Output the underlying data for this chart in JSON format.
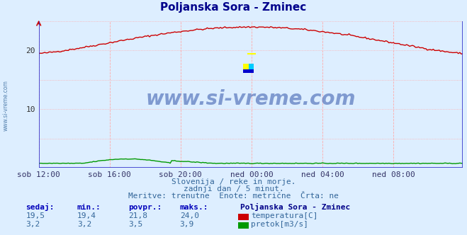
{
  "title": "Poljanska Sora - Zminec",
  "title_color": "#00008B",
  "bg_color": "#ddeeff",
  "plot_bg_color": "#ddeeff",
  "grid_color_v": "#ffaaaa",
  "grid_color_h": "#ffaaaa",
  "x_tick_labels": [
    "sob 12:00",
    "sob 16:00",
    "sob 20:00",
    "ned 00:00",
    "ned 04:00",
    "ned 08:00"
  ],
  "x_tick_positions": [
    0,
    48,
    96,
    144,
    192,
    240
  ],
  "total_points": 288,
  "ylim": [
    0,
    25
  ],
  "yticks": [
    10,
    20
  ],
  "temp_color": "#cc0000",
  "flow_color": "#009900",
  "border_color": "#3333cc",
  "subtitle_lines": [
    "Slovenija / reke in morje.",
    "zadnji dan / 5 minut.",
    "Meritve: trenutne  Enote: metrične  Črta: ne"
  ],
  "subtitle_color": "#336699",
  "table_header_color": "#0000bb",
  "table_value_color": "#336699",
  "table_bold_color": "#000088",
  "stat_labels": [
    "sedaj:",
    "min.:",
    "povpr.:",
    "maks.:"
  ],
  "temp_stats": [
    19.5,
    19.4,
    21.8,
    24.0
  ],
  "flow_stats": [
    3.2,
    3.2,
    3.5,
    3.9
  ],
  "station_label": "Poljanska Sora - Zminec",
  "temp_label": "temperatura[C]",
  "flow_label": "pretok[m3/s]",
  "watermark": "www.si-vreme.com",
  "watermark_color": "#3355aa",
  "left_label": "www.si-vreme.com"
}
